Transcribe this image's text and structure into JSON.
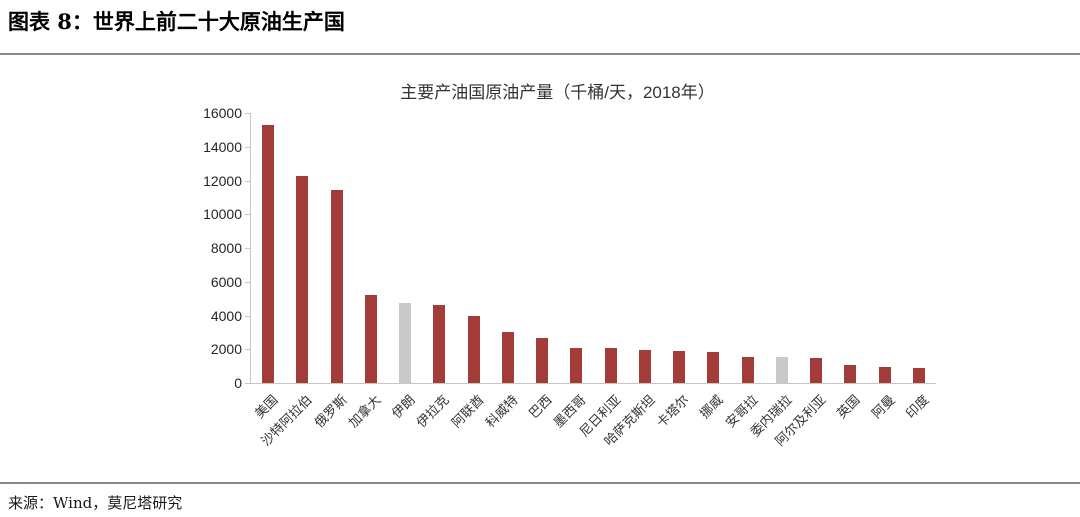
{
  "page": {
    "figure_title": "图表 8：世界上前二十大原油生产国",
    "source": "来源：Wind，莫尼塔研究"
  },
  "chart_data": {
    "type": "bar",
    "title": "主要产油国原油产量（千桶/天，2018年）",
    "categories": [
      "美国",
      "沙特阿拉伯",
      "俄罗斯",
      "加拿大",
      "伊朗",
      "伊拉克",
      "阿联酋",
      "科威特",
      "巴西",
      "墨西哥",
      "尼日利亚",
      "哈萨克斯坦",
      "卡塔尔",
      "挪威",
      "安哥拉",
      "委内瑞拉",
      "阿尔及利亚",
      "英国",
      "阿曼",
      "印度"
    ],
    "values": [
      15311,
      12287,
      11438,
      5208,
      4715,
      4614,
      3942,
      3049,
      2683,
      2068,
      2051,
      1927,
      1879,
      1844,
      1534,
      1514,
      1510,
      1085,
      978,
      869
    ],
    "highlighted_gray": [
      "伊朗",
      "委内瑞拉"
    ],
    "bar_color": "#A33B38",
    "highlight_color": "#C9C9C9",
    "axis_color": "#c6c6c6",
    "ylim": [
      0,
      16000
    ],
    "ytick_step": 2000,
    "xlabel": "",
    "ylabel": "",
    "grid": false,
    "legend": "none",
    "x_label_rotation_deg": 45
  }
}
